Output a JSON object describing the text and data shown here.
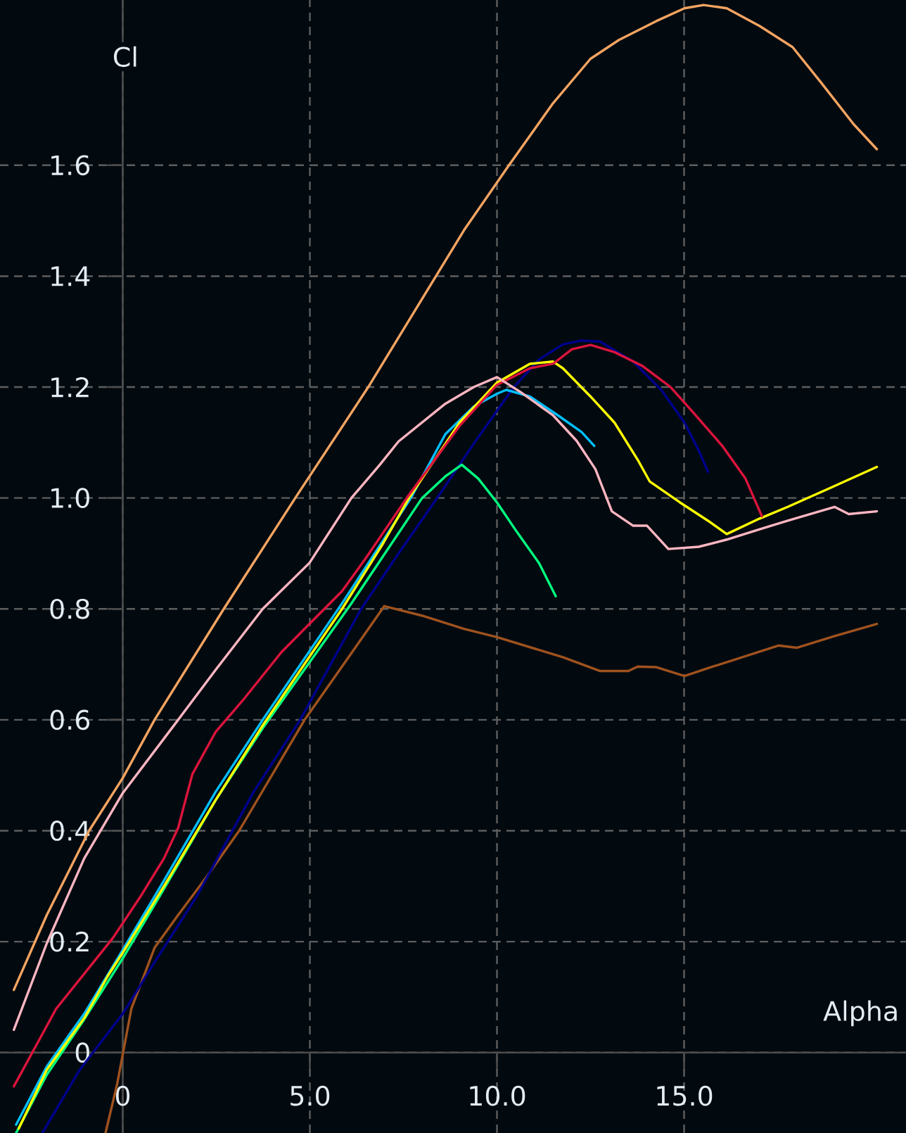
{
  "chart_data": {
    "type": "line",
    "xlabel": "Alpha",
    "ylabel": "Cl",
    "xlim": [
      -3.28,
      20.93
    ],
    "ylim": [
      -0.145,
      1.898
    ],
    "xticks": [
      0,
      {
        "value": 5,
        "label": "5.0"
      },
      {
        "value": 10,
        "label": "10.0"
      },
      {
        "value": 15,
        "label": "15.0"
      }
    ],
    "yticks": [
      0,
      0.2,
      0.4,
      0.6,
      0.8,
      {
        "value": 1,
        "label": "1.0"
      },
      1.2,
      1.4,
      1.6
    ],
    "grid": true,
    "marker": "none",
    "line_style": "solid",
    "series": [
      {
        "color": "#F5A461",
        "x": [
          -2.91,
          -2.03,
          -0.9,
          0,
          0.85,
          2.7,
          4.61,
          6.56,
          8.37,
          9.12,
          10.32,
          11.5,
          12.5,
          13.26,
          14.26,
          15.01,
          15.52,
          16.14,
          17.02,
          17.9,
          18.65,
          19.53,
          20.15
        ],
        "values": [
          0.113,
          0.248,
          0.4,
          0.495,
          0.6,
          0.8,
          1.0,
          1.2,
          1.4,
          1.483,
          1.6,
          1.712,
          1.792,
          1.826,
          1.86,
          1.883,
          1.889,
          1.883,
          1.851,
          1.813,
          1.75,
          1.674,
          1.629
        ]
      },
      {
        "color": "#A0521E",
        "x": [
          -0.46,
          -0.15,
          0.23,
          0.85,
          1.48,
          2.23,
          3.11,
          4.86,
          6.99,
          7.99,
          9.12,
          10.0,
          11.76,
          12.76,
          13.51,
          13.76,
          14.26,
          15.01,
          15.77,
          17.52,
          18.02,
          19.02,
          20.15
        ],
        "values": [
          -0.145,
          -0.057,
          0.079,
          0.189,
          0.248,
          0.316,
          0.4,
          0.6,
          0.805,
          0.788,
          0.764,
          0.749,
          0.713,
          0.688,
          0.688,
          0.696,
          0.695,
          0.679,
          0.696,
          0.734,
          0.73,
          0.751,
          0.773
        ]
      },
      {
        "color": "#00008B",
        "x": [
          -2.15,
          -1.15,
          0,
          0.85,
          1.98,
          3.48,
          4.74,
          6.37,
          7.37,
          8.4,
          9.4,
          10.45,
          11.13,
          11.76,
          12.26,
          12.76,
          13.64,
          14.39,
          15.01,
          15.39,
          15.64
        ],
        "values": [
          -0.145,
          -0.031,
          0.07,
          0.163,
          0.282,
          0.468,
          0.6,
          0.8,
          0.9,
          1.0,
          1.1,
          1.2,
          1.25,
          1.277,
          1.284,
          1.282,
          1.246,
          1.195,
          1.136,
          1.086,
          1.047
        ]
      },
      {
        "color": "#00FF7F",
        "x": [
          -2.85,
          -2.03,
          -1.03,
          0,
          1.1,
          2.48,
          3.74,
          6.11,
          8.0,
          8.62,
          9.06,
          9.5,
          10.0,
          10.5,
          11.13,
          11.57
        ],
        "values": [
          -0.145,
          -0.04,
          0.06,
          0.17,
          0.295,
          0.455,
          0.585,
          0.81,
          1.0,
          1.039,
          1.06,
          1.035,
          0.992,
          0.942,
          0.882,
          0.823
        ]
      },
      {
        "color": "#00BFFF",
        "x": [
          -2.85,
          -2.03,
          -1.03,
          0,
          1.1,
          2.48,
          3.74,
          5.86,
          7.7,
          8.62,
          9.38,
          10.0,
          10.25,
          10.88,
          11.63,
          12.26,
          12.6
        ],
        "values": [
          -0.13,
          -0.025,
          0.07,
          0.185,
          0.31,
          0.47,
          0.6,
          0.81,
          1.0,
          1.115,
          1.165,
          1.188,
          1.195,
          1.183,
          1.149,
          1.119,
          1.094
        ]
      },
      {
        "color": "#FFFF00",
        "x": [
          -2.78,
          -2.03,
          -1.4,
          -1.03,
          -0.4,
          0,
          1.1,
          2.48,
          3.74,
          5.86,
          6.93,
          7.65,
          9.0,
          10.0,
          10.88,
          11.5,
          11.76,
          12.5,
          13.14,
          13.76,
          14.08,
          14.89,
          15.64,
          16.14,
          17.02,
          17.77,
          18.9,
          20.15
        ],
        "values": [
          -0.137,
          -0.031,
          0.028,
          0.062,
          0.138,
          0.18,
          0.3,
          0.455,
          0.59,
          0.8,
          0.915,
          1.0,
          1.136,
          1.208,
          1.242,
          1.246,
          1.234,
          1.183,
          1.136,
          1.069,
          1.03,
          0.992,
          0.959,
          0.935,
          0.963,
          0.984,
          1.018,
          1.056
        ]
      },
      {
        "color": "#DC143C",
        "x": [
          -2.91,
          -1.78,
          -0.27,
          0.48,
          1.1,
          1.48,
          1.86,
          2.48,
          3.23,
          4.24,
          4.99,
          5.86,
          6.49,
          7.6,
          9.0,
          10.0,
          10.88,
          11.5,
          12.0,
          12.5,
          13.14,
          13.89,
          14.64,
          15.26,
          16.02,
          16.64,
          17.08
        ],
        "values": [
          -0.061,
          0.079,
          0.206,
          0.282,
          0.35,
          0.405,
          0.502,
          0.578,
          0.637,
          0.722,
          0.773,
          0.832,
          0.891,
          1.001,
          1.13,
          1.204,
          1.234,
          1.242,
          1.268,
          1.276,
          1.263,
          1.238,
          1.2,
          1.153,
          1.094,
          1.035,
          0.967
        ]
      },
      {
        "color": "#FFB6C1",
        "x": [
          -2.91,
          -2.03,
          -1.03,
          0,
          1.48,
          2.48,
          3.74,
          4.99,
          6.11,
          6.87,
          7.37,
          8.62,
          9.38,
          10.0,
          10.63,
          11.5,
          12.13,
          12.63,
          13.07,
          13.64,
          14.01,
          14.58,
          15.39,
          16.14,
          17.14,
          17.77,
          19.02,
          19.4,
          20.15
        ],
        "values": [
          0.041,
          0.197,
          0.35,
          0.468,
          0.6,
          0.69,
          0.8,
          0.883,
          1.0,
          1.06,
          1.102,
          1.17,
          1.2,
          1.218,
          1.191,
          1.149,
          1.103,
          1.052,
          0.976,
          0.95,
          0.95,
          0.908,
          0.912,
          0.925,
          0.946,
          0.959,
          0.984,
          0.971,
          0.976
        ]
      }
    ]
  }
}
